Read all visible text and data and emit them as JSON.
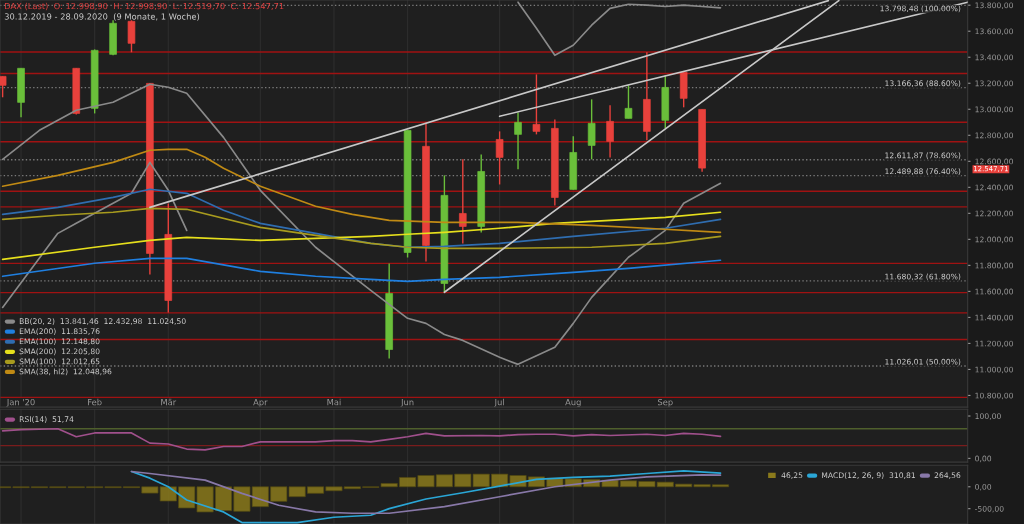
{
  "chart_data": [
    {
      "type": "candlestick",
      "title": "DAX (Last)  O: 12.998,90  H: 12.998,90  L: 12.519,70  C: 12.547,71",
      "annotations": [
        "30.12.2019 - 28.09.2020  (9 Monate, 1 Woche)",
        "12.547,71"
      ],
      "x": [
        "2019-12-30",
        "2020-01-06",
        "2020-01-27",
        "2020-02-03",
        "2020-02-10",
        "2020-02-17",
        "2020-02-24",
        "2020-03-02",
        "2020-05-25",
        "2020-06-01",
        "2020-06-08",
        "2020-06-15",
        "2020-06-22",
        "2020-06-29",
        "2020-07-06",
        "2020-07-13",
        "2020-07-20",
        "2020-07-27",
        "2020-08-03",
        "2020-08-10",
        "2020-08-17",
        "2020-08-24",
        "2020-08-31",
        "2020-09-07",
        "2020-09-14",
        "2020-09-21"
      ],
      "ohlc": [
        [
          13253,
          13253,
          13092,
          13184
        ],
        [
          13053,
          13315,
          12938,
          13315
        ],
        [
          13315,
          13315,
          12960,
          12968
        ],
        [
          13007,
          13460,
          12968,
          13453
        ],
        [
          13422,
          13684,
          13415,
          13661
        ],
        [
          13676,
          13684,
          13438,
          13507
        ],
        [
          13199,
          13199,
          11730,
          11892
        ],
        [
          12038,
          12276,
          11438,
          11530
        ],
        [
          11153,
          11815,
          11084,
          11584
        ],
        [
          11899,
          12838,
          11861,
          12838
        ],
        [
          12715,
          12892,
          11830,
          11953
        ],
        [
          11661,
          12492,
          11592,
          12338
        ],
        [
          12199,
          12615,
          11968,
          12099
        ],
        [
          12099,
          12653,
          12053,
          12522
        ],
        [
          12768,
          12830,
          12422,
          12630
        ],
        [
          12807,
          12976,
          12538,
          12899
        ],
        [
          12884,
          13268,
          12807,
          12830
        ],
        [
          12853,
          12922,
          12261,
          12322
        ],
        [
          12384,
          12792,
          12384,
          12668
        ],
        [
          12722,
          13076,
          12615,
          12892
        ],
        [
          12907,
          13030,
          12630,
          12753
        ],
        [
          12930,
          13184,
          12930,
          13007
        ],
        [
          13076,
          13438,
          12761,
          12830
        ],
        [
          12915,
          13261,
          12853,
          13168
        ],
        [
          13284,
          13284,
          13015,
          13084
        ],
        [
          12998.9,
          12998.9,
          12519.7,
          12547.71
        ]
      ],
      "colors": [
        "#e8413c",
        "#6abf3a",
        "#e8413c",
        "#6abf3a",
        "#6abf3a",
        "#e8413c",
        "#e8413c",
        "#e8413c",
        "#6abf3a",
        "#6abf3a",
        "#e8413c",
        "#6abf3a",
        "#e8413c",
        "#6abf3a",
        "#e8413c",
        "#6abf3a",
        "#e8413c",
        "#e8413c",
        "#6abf3a",
        "#6abf3a",
        "#e8413c",
        "#6abf3a",
        "#e8413c",
        "#6abf3a",
        "#e8413c",
        "#e8413c"
      ],
      "series": [
        {
          "type": "line",
          "name": "BB(20, 2)  13.841,46  12.432,98  11.024,50",
          "color": "#8a8a8a",
          "x": [
            "2020-07-13",
            "2020-07-20",
            "2020-07-27",
            "2020-08-03",
            "2020-08-10",
            "2020-08-17",
            "2020-08-24",
            "2020-08-31",
            "2020-09-07",
            "2020-09-14",
            "2020-09-21",
            "2020-09-28"
          ],
          "values": [
            13823,
            13623,
            13415,
            13492,
            13646,
            13776,
            13807,
            13800,
            13790,
            13800,
            13790,
            13780
          ]
        },
        {
          "type": "line",
          "color": "#8a8a8a",
          "x": [
            "2019-12-30",
            "2020-01-13",
            "2020-01-27",
            "2020-02-10",
            "2020-02-24",
            "2020-03-02",
            "2020-03-09",
            "2020-03-23",
            "2020-04-06",
            "2020-04-27",
            "2020-05-18",
            "2020-06-01",
            "2020-06-08",
            "2020-06-15",
            "2020-06-22",
            "2020-07-06",
            "2020-07-13",
            "2020-07-27",
            "2020-08-03",
            "2020-08-10",
            "2020-08-24",
            "2020-09-07",
            "2020-09-14",
            "2020-09-28"
          ],
          "values": [
            12615,
            12838,
            12992,
            13054,
            13192,
            13169,
            13123,
            12784,
            12377,
            11939,
            11608,
            11393,
            11354,
            11269,
            11223,
            11093,
            11039,
            11170,
            11354,
            11554,
            11862,
            12069,
            12277,
            12431
          ]
        },
        {
          "type": "line",
          "color": "#8a8a8a",
          "x": [
            "2019-12-30",
            "2020-01-20",
            "2020-01-27",
            "2020-02-17",
            "2020-02-24",
            "2020-03-02",
            "2020-03-09"
          ],
          "values": [
            11477,
            12046,
            12123,
            12354,
            12592,
            12377,
            12069
          ]
        },
        {
          "type": "line",
          "name": "EMA(200)  11.835,76",
          "color": "#1f7fe0",
          "x": [
            "2019-12-30",
            "2020-02-03",
            "2020-02-24",
            "2020-03-09",
            "2020-04-06",
            "2020-04-27",
            "2020-05-18",
            "2020-06-01",
            "2020-06-15",
            "2020-07-06",
            "2020-08-03",
            "2020-08-24",
            "2020-09-28"
          ],
          "values": [
            11716,
            11816,
            11854,
            11854,
            11754,
            11716,
            11692,
            11677,
            11692,
            11708,
            11746,
            11777,
            11839
          ]
        },
        {
          "type": "line",
          "name": "EMA(100)  12.148,80",
          "color": "#2f6db0",
          "x": [
            "2019-12-30",
            "2020-01-20",
            "2020-02-10",
            "2020-02-24",
            "2020-03-09",
            "2020-03-23",
            "2020-04-06",
            "2020-04-27",
            "2020-05-18",
            "2020-06-01",
            "2020-06-15",
            "2020-07-06",
            "2020-08-03",
            "2020-09-07",
            "2020-09-28"
          ],
          "values": [
            12192,
            12246,
            12323,
            12385,
            12354,
            12223,
            12123,
            12046,
            11969,
            11939,
            11946,
            11969,
            12023,
            12085,
            12154
          ]
        },
        {
          "type": "line",
          "name": "SMA(200)  12.205,80",
          "color": "#e6df1c",
          "x": [
            "2019-12-30",
            "2020-02-03",
            "2020-02-24",
            "2020-03-09",
            "2020-04-06",
            "2020-04-27",
            "2020-05-18",
            "2020-06-01",
            "2020-06-15",
            "2020-07-06",
            "2020-07-27",
            "2020-09-07",
            "2020-09-28"
          ],
          "values": [
            11846,
            11939,
            11992,
            12015,
            11992,
            12008,
            12023,
            12039,
            12054,
            12085,
            12123,
            12169,
            12208
          ]
        },
        {
          "type": "line",
          "name": "SMA(100)  12.012,65",
          "color": "#a89b1e",
          "x": [
            "2019-12-30",
            "2020-01-20",
            "2020-02-10",
            "2020-02-24",
            "2020-03-09",
            "2020-04-06",
            "2020-04-27",
            "2020-05-18",
            "2020-06-01",
            "2020-06-15",
            "2020-07-06",
            "2020-08-10",
            "2020-09-07",
            "2020-09-28"
          ],
          "values": [
            12154,
            12185,
            12208,
            12238,
            12231,
            12092,
            12031,
            11969,
            11939,
            11931,
            11931,
            11939,
            11969,
            12023
          ]
        },
        {
          "type": "line",
          "name": "SMA(38, hl2)  12.048,96",
          "color": "#c08a14",
          "x": [
            "2019-12-30",
            "2020-01-20",
            "2020-02-10",
            "2020-02-24",
            "2020-03-02",
            "2020-03-09",
            "2020-03-16",
            "2020-03-23",
            "2020-04-06",
            "2020-04-27",
            "2020-05-11",
            "2020-05-25",
            "2020-06-15",
            "2020-07-13",
            "2020-08-10",
            "2020-08-31",
            "2020-09-28"
          ],
          "values": [
            12408,
            12492,
            12592,
            12685,
            12692,
            12692,
            12631,
            12546,
            12408,
            12254,
            12192,
            12146,
            12131,
            12131,
            12108,
            12085,
            12054
          ]
        },
        {
          "type": "line",
          "color": "#c8c8c8",
          "x": [
            "2020-02-24",
            "2020-11-08"
          ],
          "values": [
            12246,
            13835
          ]
        },
        {
          "type": "line",
          "color": "#c8c8c8",
          "x": [
            "2020-07-06",
            "2020-12-31"
          ],
          "values": [
            12946,
            13823
          ]
        },
        {
          "type": "line",
          "color": "#c8c8c8",
          "x": [
            "2020-06-15",
            "2020-11-12"
          ],
          "values": [
            11593,
            13835
          ]
        }
      ],
      "xlim": [
        "2019-12-29",
        "2020-12-31"
      ],
      "xticks": [
        {
          "value": "2020-01-06",
          "label": "Jan '20"
        },
        {
          "value": "2020-02-03",
          "label": "Feb"
        },
        {
          "value": "2020-03-02",
          "label": "Mär"
        },
        {
          "value": "2020-04-06",
          "label": "Apr"
        },
        {
          "value": "2020-05-04",
          "label": "Mai"
        },
        {
          "value": "2020-06-01",
          "label": "Jun"
        },
        {
          "value": "2020-07-06",
          "label": "Jul"
        },
        {
          "value": "2020-08-03",
          "label": "Aug"
        },
        {
          "value": "2020-09-07",
          "label": "Sep"
        }
      ],
      "ylim": [
        10710,
        13840
      ],
      "yticks": [
        {
          "value": 10800,
          "label": "10.800,00"
        },
        {
          "value": 11000,
          "label": "11.000,00"
        },
        {
          "value": 11200,
          "label": "11.200,00"
        },
        {
          "value": 11400,
          "label": "11.400,00"
        },
        {
          "value": 11600,
          "label": "11.600,00"
        },
        {
          "value": 11800,
          "label": "11.800,00"
        },
        {
          "value": 12000,
          "label": "12.000,00"
        },
        {
          "value": 12200,
          "label": "12.200,00"
        },
        {
          "value": 12400,
          "label": "12.400,00"
        },
        {
          "value": 12600,
          "label": "12.600,00"
        },
        {
          "value": 12800,
          "label": "12.800,00"
        },
        {
          "value": 13000,
          "label": "13.000,00"
        },
        {
          "value": 13200,
          "label": "13.200,00"
        },
        {
          "value": 13400,
          "label": "13.400,00"
        },
        {
          "value": 13600,
          "label": "13.600,00"
        },
        {
          "value": 13800,
          "label": "13.800,00"
        }
      ],
      "ref_lines": [
        {
          "axis": "y",
          "value": 13798.48,
          "label": "13.798,48 (100.00%)",
          "color": "#7a7a7a",
          "line_style": "dotted"
        },
        {
          "axis": "y",
          "value": 13166.36,
          "label": "13.166,36 (88.60%)",
          "color": "#7a7a7a",
          "line_style": "dotted"
        },
        {
          "axis": "y",
          "value": 12611.87,
          "label": "12.611,87 (78.60%)",
          "color": "#7a7a7a",
          "line_style": "dotted"
        },
        {
          "axis": "y",
          "value": 12489.88,
          "label": "12.489,88 (76.40%)",
          "color": "#7a7a7a",
          "line_style": "dotted"
        },
        {
          "axis": "y",
          "value": 11680.32,
          "label": "11.680,32 (61.80%)",
          "color": "#7a7a7a",
          "line_style": "dotted"
        },
        {
          "axis": "y",
          "value": 11026.01,
          "label": "11.026,01 (50.00%)",
          "color": "#7a7a7a",
          "line_style": "dotted"
        },
        {
          "axis": "y",
          "value": 13440,
          "color": "#a01212"
        },
        {
          "axis": "y",
          "value": 13275,
          "color": "#a01212"
        },
        {
          "axis": "y",
          "value": 12900,
          "color": "#a01212"
        },
        {
          "axis": "y",
          "value": 12750,
          "color": "#a01212"
        },
        {
          "axis": "y",
          "value": 12370,
          "color": "#a01212"
        },
        {
          "axis": "y",
          "value": 12250,
          "color": "#a01212"
        },
        {
          "axis": "y",
          "value": 11815,
          "color": "#a01212"
        },
        {
          "axis": "y",
          "value": 11590,
          "color": "#a01212"
        },
        {
          "axis": "y",
          "value": 11435,
          "color": "#a01212"
        },
        {
          "axis": "y",
          "value": 11230,
          "color": "#a01212"
        },
        {
          "axis": "y",
          "value": 10785,
          "color": "#a01212"
        }
      ],
      "legend": "bottom left",
      "grid": "x"
    },
    {
      "type": "line",
      "series": [
        {
          "name": "RSI(14)  51,74",
          "color": "#a0508c",
          "x": [
            "2019-12-30",
            "2020-01-06",
            "2020-01-20",
            "2020-01-27",
            "2020-02-03",
            "2020-02-17",
            "2020-02-24",
            "2020-03-02",
            "2020-03-09",
            "2020-03-16",
            "2020-03-23",
            "2020-03-30",
            "2020-04-06",
            "2020-04-27",
            "2020-05-04",
            "2020-05-11",
            "2020-05-18",
            "2020-05-25",
            "2020-06-01",
            "2020-06-08",
            "2020-06-15",
            "2020-06-29",
            "2020-07-06",
            "2020-07-13",
            "2020-07-20",
            "2020-07-27",
            "2020-08-03",
            "2020-08-10",
            "2020-08-17",
            "2020-08-31",
            "2020-09-07",
            "2020-09-14",
            "2020-09-21",
            "2020-09-28"
          ],
          "values": [
            65,
            68,
            70,
            51,
            60,
            60,
            36,
            34,
            22,
            20,
            28,
            28,
            39,
            39,
            42,
            42,
            39,
            45,
            51,
            59,
            53,
            54,
            53,
            56,
            57,
            57,
            53,
            56,
            54,
            57,
            54,
            59,
            57,
            52
          ]
        }
      ],
      "xlim": [
        "2019-12-29",
        "2020-12-31"
      ],
      "ylim": [
        -9,
        116
      ],
      "yticks": [
        {
          "value": 0,
          "label": "0,00"
        },
        {
          "value": 100,
          "label": "100,00"
        }
      ],
      "ref_lines": [
        {
          "axis": "y",
          "value": 70,
          "color": "#4f5f2c"
        },
        {
          "axis": "y",
          "value": 30,
          "color": "#7a1c1c"
        }
      ],
      "tick_labels": "y",
      "legend": "top left",
      "grid": "x"
    },
    {
      "type": "line",
      "x": [
        "2019-12-30",
        "2020-01-06",
        "2020-01-13",
        "2020-01-20",
        "2020-01-27",
        "2020-02-03",
        "2020-02-10",
        "2020-02-17",
        "2020-02-24",
        "2020-03-02",
        "2020-03-09",
        "2020-03-16",
        "2020-03-23",
        "2020-03-30",
        "2020-04-06",
        "2020-04-13",
        "2020-04-20",
        "2020-04-27",
        "2020-05-04",
        "2020-05-11",
        "2020-05-18",
        "2020-05-25",
        "2020-06-01",
        "2020-06-08",
        "2020-06-15",
        "2020-06-22",
        "2020-06-29",
        "2020-07-06",
        "2020-07-13",
        "2020-07-20",
        "2020-07-27",
        "2020-08-03",
        "2020-08-10",
        "2020-08-17",
        "2020-08-24",
        "2020-08-31",
        "2020-09-07",
        "2020-09-14",
        "2020-09-21",
        "2020-09-28"
      ],
      "series": [
        {
          "type": "bar",
          "name": "46,25",
          "color": "#8a7a1c",
          "values": [
            -20,
            -20,
            -20,
            -20,
            -20,
            -20,
            -20,
            -20,
            -144,
            -325,
            -484,
            -575,
            -545,
            -560,
            -454,
            -333,
            -227,
            -150,
            -91,
            -45,
            -15,
            76,
            213,
            258,
            274,
            289,
            289,
            289,
            258,
            227,
            197,
            182,
            167,
            152,
            136,
            121,
            106,
            61,
            50,
            46
          ]
        },
        {
          "type": "line",
          "name": "MACD(12, 26, 9)  310,81",
          "color": "#2aa6d6",
          "x": [
            "2020-02-17",
            "2020-02-24",
            "2020-03-02",
            "2020-03-09",
            "2020-03-23",
            "2020-03-30",
            "2020-04-13",
            "2020-04-20",
            "2020-05-04",
            "2020-05-18",
            "2020-05-25",
            "2020-06-08",
            "2020-06-22",
            "2020-07-06",
            "2020-07-20",
            "2020-08-03",
            "2020-08-17",
            "2020-08-31",
            "2020-09-14",
            "2020-09-28"
          ],
          "values": [
            349,
            197,
            0,
            -302,
            -574,
            -817,
            -817,
            -817,
            -695,
            -650,
            -499,
            -280,
            -136,
            16,
            168,
            213,
            243,
            304,
            363,
            311
          ]
        },
        {
          "type": "line",
          "name": "264,56",
          "color": "#8878a8",
          "x": [
            "2020-02-17",
            "2020-02-24",
            "2020-03-16",
            "2020-03-30",
            "2020-04-13",
            "2020-04-27",
            "2020-05-11",
            "2020-05-25",
            "2020-06-15",
            "2020-07-06",
            "2020-07-27",
            "2020-08-17",
            "2020-08-31",
            "2020-09-21",
            "2020-09-28"
          ],
          "values": [
            349,
            304,
            152,
            -150,
            -422,
            -574,
            -604,
            -604,
            -454,
            -227,
            0,
            152,
            227,
            272,
            265
          ]
        }
      ],
      "xlim": [
        "2019-12-29",
        "2020-12-31"
      ],
      "ylim": [
        -850,
        490
      ],
      "yticks": [
        {
          "value": -500,
          "label": "-500,00"
        },
        {
          "value": 0,
          "label": "0,00"
        }
      ],
      "tick_labels": "y",
      "legend": "top right",
      "grid": "x"
    }
  ]
}
